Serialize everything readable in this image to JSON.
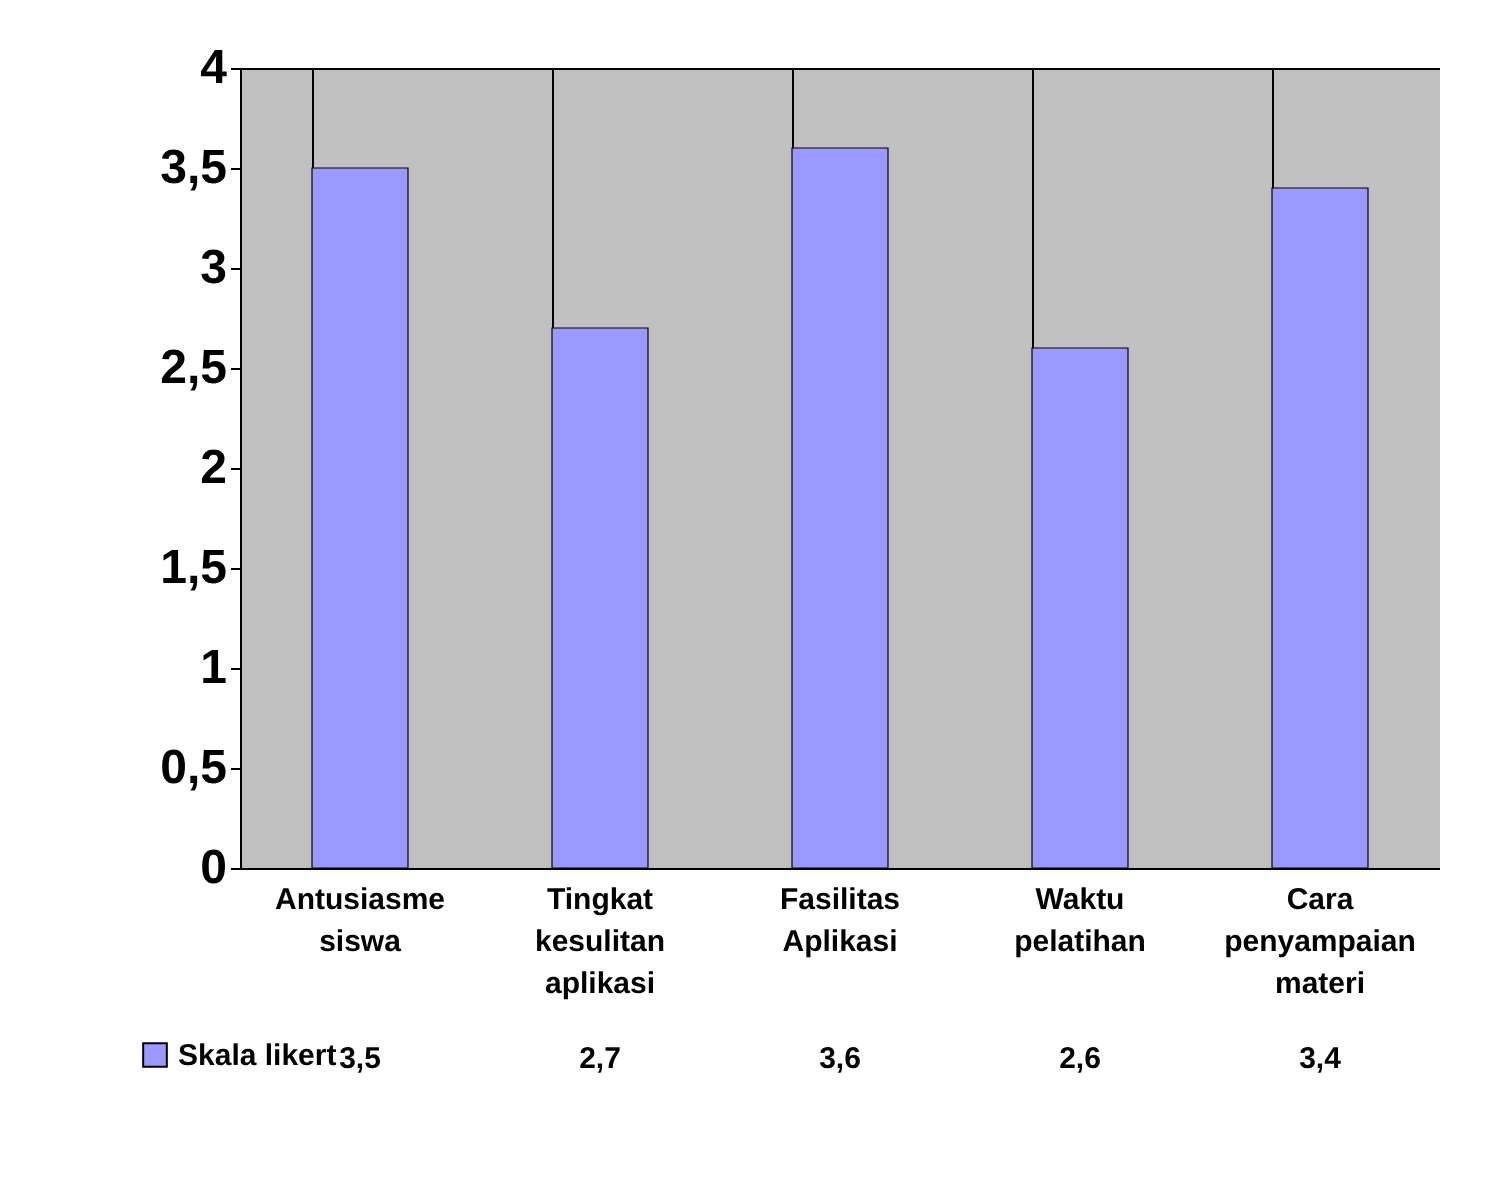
{
  "chart_data": {
    "type": "bar",
    "categories": [
      "Antusiasme siswa",
      "Tingkat kesulitan aplikasi",
      "Fasilitas Aplikasi",
      "Waktu pelatihan",
      "Cara penyampaian materi"
    ],
    "series": [
      {
        "name": "Skala likert",
        "color": "#9999ff",
        "values": [
          3.5,
          2.7,
          3.6,
          2.6,
          3.4
        ],
        "value_labels": [
          "3,5",
          "2,7",
          "3,6",
          "2,6",
          "3,4"
        ]
      }
    ],
    "ylim": [
      0,
      4
    ],
    "yticks": [
      0,
      {
        "value": 0.5,
        "label": "0,5"
      },
      1,
      {
        "value": 1.5,
        "label": "1,5"
      },
      2,
      {
        "value": 2.5,
        "label": "2,5"
      },
      3,
      {
        "value": 3.5,
        "label": "3,5"
      },
      4
    ],
    "grid": "x",
    "legend": "bottom"
  }
}
